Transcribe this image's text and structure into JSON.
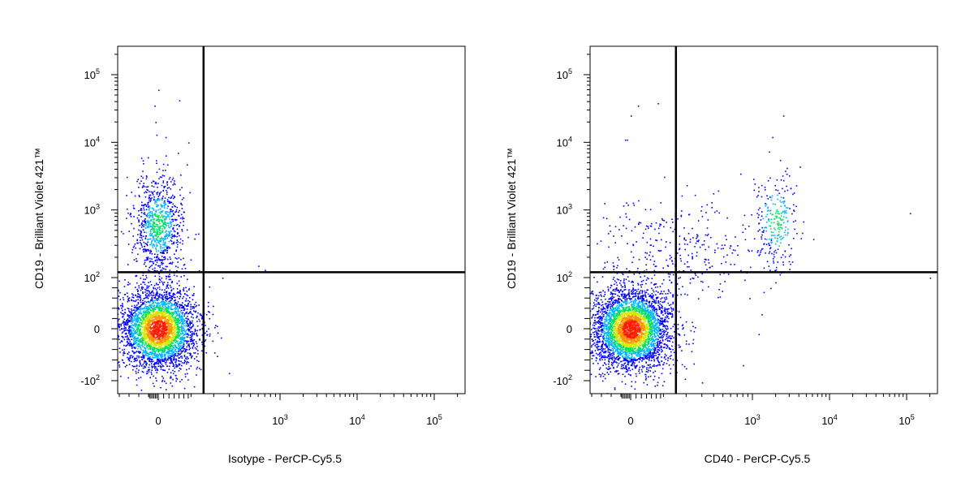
{
  "chart_data": [
    {
      "type": "scatter",
      "plot_style": "density dot plot (flow cytometry)",
      "xlabel": "Isotype - PerCP-Cy5.5",
      "ylabel": "CD19 - Brilliant Violet 421™",
      "x_scale": "biexponential",
      "y_scale": "biexponential",
      "x_ticks": [
        "0",
        "10^3",
        "10^4",
        "10^5"
      ],
      "y_ticks": [
        "-10^2",
        "0",
        "10^2",
        "10^3",
        "10^4",
        "10^5"
      ],
      "quadrant_gate": {
        "x": 150,
        "y": 120
      },
      "populations": [
        {
          "name": "",
          "x_center": 0,
          "y_center": 0,
          "count": 3500,
          "density": "high",
          "quadrant": "lower-left"
        },
        {
          "name": "",
          "x_center": 0,
          "y_center": 600,
          "count": 900,
          "density": "medium",
          "quadrant": "upper-left"
        }
      ],
      "sparse_points": [
        {
          "x": 0,
          "y": 60000
        },
        {
          "x": -40,
          "y": 35000
        },
        {
          "x": 60,
          "y": 42000
        },
        {
          "x": -30,
          "y": 20000
        },
        {
          "x": -20,
          "y": 13000
        },
        {
          "x": 20,
          "y": 12000
        },
        {
          "x": 90,
          "y": 10000
        },
        {
          "x": 600,
          "y": 150
        },
        {
          "x": 700,
          "y": 130
        },
        {
          "x": 250,
          "y": 100
        }
      ],
      "colors": [
        "#0000ff",
        "#00b4ff",
        "#00e060",
        "#d4e800",
        "#ff9000",
        "#ff1a00"
      ]
    },
    {
      "type": "scatter",
      "plot_style": "density dot plot (flow cytometry)",
      "xlabel": "CD40 - PerCP-Cy5.5",
      "ylabel": "CD19 - Brilliant Violet 421™",
      "x_scale": "biexponential",
      "y_scale": "biexponential",
      "x_ticks": [
        "0",
        "10^3",
        "10^4",
        "10^5"
      ],
      "y_ticks": [
        "-10^2",
        "0",
        "10^2",
        "10^3",
        "10^4",
        "10^5"
      ],
      "quadrant_gate": {
        "x": 150,
        "y": 120
      },
      "populations": [
        {
          "name": "",
          "x_center": 0,
          "y_center": 0,
          "count": 3800,
          "density": "high",
          "quadrant": "lower-left"
        },
        {
          "name": "",
          "x_center": 2000,
          "y_center": 700,
          "count": 280,
          "density": "medium",
          "quadrant": "upper-right"
        },
        {
          "name": "",
          "x_center": 150,
          "y_center": 250,
          "count": 300,
          "density": "low",
          "quadrant": "upper-left/upper-right"
        }
      ],
      "sparse_points": [
        {
          "x": 20,
          "y": 35000
        },
        {
          "x": 80,
          "y": 38000
        },
        {
          "x": 0,
          "y": 25000
        },
        {
          "x": -60,
          "y": 11000
        },
        {
          "x": -40,
          "y": 11000
        },
        {
          "x": 2500,
          "y": 25000
        },
        {
          "x": 1800,
          "y": 12000
        },
        {
          "x": 110000,
          "y": 900
        },
        {
          "x": 200000,
          "y": 100
        },
        {
          "x": 1200,
          "y": -10
        },
        {
          "x": 800,
          "y": -70
        },
        {
          "x": 300,
          "y": -110
        },
        {
          "x": -50,
          "y": 800
        }
      ],
      "colors": [
        "#0000ff",
        "#00b4ff",
        "#00e060",
        "#d4e800",
        "#ff9000",
        "#ff1a00"
      ]
    }
  ]
}
